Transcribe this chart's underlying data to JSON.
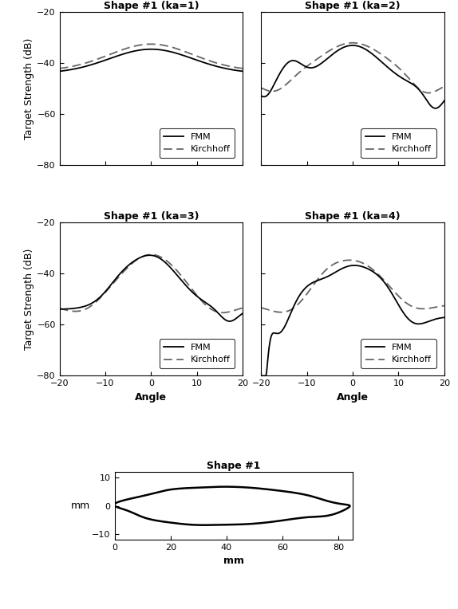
{
  "subplot_titles": [
    "Shape #1 (ka=1)",
    "Shape #1 (ka=2)",
    "Shape #1 (ka=3)",
    "Shape #1 (ka=4)",
    "Shape #1"
  ],
  "xlim": [
    -20,
    20
  ],
  "ylim": [
    -80,
    -20
  ],
  "xticks": [
    -20,
    -10,
    0,
    10,
    20
  ],
  "yticks": [
    -80,
    -60,
    -40,
    -20
  ],
  "xlabel": "Angle",
  "ylabel": "Target Strength (dB)",
  "shape_xlabel": "mm",
  "shape_ylabel": "mm",
  "shape_xlim": [
    0,
    85
  ],
  "shape_ylim": [
    -12,
    12
  ],
  "shape_xticks": [
    0,
    20,
    40,
    60,
    80
  ],
  "shape_yticks": [
    -10,
    0,
    10
  ],
  "fmm_color": "#000000",
  "kirchhoff_color": "#666666",
  "bg_color": "#ffffff"
}
